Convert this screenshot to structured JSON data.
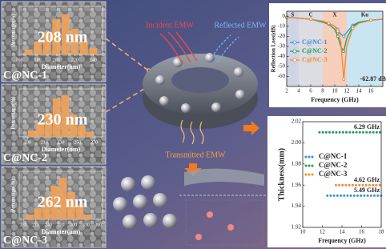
{
  "panels": [
    {
      "size_label": "208 nm",
      "name": "C@NC-1",
      "histogram": {
        "ylabel": "Percentage(%)",
        "xlabel": "Diameter(nm)",
        "color": "#f2a35a",
        "x": [
          170,
          180,
          190,
          200,
          210,
          220,
          230,
          240
        ],
        "values": [
          3,
          8,
          14,
          22,
          25,
          16,
          8,
          4
        ],
        "xlim": [
          160,
          250
        ],
        "ylim": [
          0,
          30
        ],
        "xticks": [
          160,
          180,
          200,
          220,
          240
        ]
      }
    },
    {
      "size_label": "230 nm",
      "name": "C@NC-2",
      "histogram": {
        "ylabel": "Percentage(%)",
        "xlabel": "Diameter(nm)",
        "color": "#f2a35a",
        "x": [
          195,
          205,
          215,
          225,
          235,
          245,
          255,
          265
        ],
        "values": [
          4,
          9,
          15,
          24,
          26,
          14,
          7,
          3
        ],
        "xlim": [
          180,
          280
        ],
        "ylim": [
          0,
          30
        ],
        "xticks": [
          190,
          210,
          230,
          250,
          270
        ]
      }
    },
    {
      "size_label": "262 nm",
      "name": "C@NC-3",
      "histogram": {
        "ylabel": "Percentage(%)",
        "xlabel": "Diameter(nm)",
        "color": "#f2a35a",
        "x": [
          195,
          215,
          235,
          255,
          275,
          295,
          315,
          335
        ],
        "values": [
          3,
          7,
          14,
          21,
          26,
          17,
          9,
          3
        ],
        "xlim": [
          170,
          370
        ],
        "ylim": [
          0,
          30
        ],
        "xticks": [
          180,
          210,
          240,
          270,
          300,
          330,
          360
        ]
      }
    }
  ],
  "diagram": {
    "incident": "Incident EMW",
    "reflected": "Reflected EMW",
    "transmitted": "Transmitted EMW"
  },
  "chart_data": [
    {
      "type": "line",
      "ylabel": "Reflection Loss(dB)",
      "xlabel": "Frequency (GHz)",
      "x": [
        2,
        4,
        6,
        8,
        9,
        10,
        10.5,
        11,
        11.5,
        12,
        13,
        14,
        16,
        18
      ],
      "series": [
        {
          "name": "C@NC-1",
          "color": "#3a8fd8",
          "values": [
            -1,
            -2,
            -3,
            -5,
            -7,
            -10,
            -13,
            -18,
            -20,
            -16,
            -9,
            -6,
            -4,
            -3
          ]
        },
        {
          "name": "C@NC-2",
          "color": "#1f9a5a",
          "values": [
            -1,
            -2,
            -3,
            -6,
            -8,
            -13,
            -20,
            -30,
            -35,
            -22,
            -10,
            -6,
            -4,
            -3
          ]
        },
        {
          "name": "C@NC-3",
          "color": "#f08a30",
          "values": [
            -1,
            -2,
            -3,
            -5,
            -7,
            -10,
            -15,
            -25,
            -62.87,
            -30,
            -12,
            -7,
            -4,
            -3
          ]
        }
      ],
      "bands": [
        {
          "label": "S",
          "from": 2,
          "to": 4,
          "color": "#c9cde0"
        },
        {
          "label": "C",
          "from": 4,
          "to": 8,
          "color": "#d6d6de"
        },
        {
          "label": "X",
          "from": 8,
          "to": 12,
          "color": "#f6c6b0"
        },
        {
          "label": "Ku",
          "from": 12,
          "to": 18,
          "color": "#bfe0ee"
        }
      ],
      "annotation": {
        "text": "-62.87 dB",
        "x": 11.5,
        "y": -62.87
      },
      "xlim": [
        2,
        18
      ],
      "ylim": [
        -70,
        5
      ],
      "xticks": [
        2,
        4,
        6,
        8,
        10,
        12,
        14,
        16
      ],
      "yticks": [
        0,
        -10,
        -20,
        -30,
        -40,
        -50,
        -60
      ],
      "legend": "center left"
    },
    {
      "type": "range",
      "ylabel": "Thickness(mm)",
      "xlabel": "Frequency (GHz)",
      "xlim": [
        10,
        18
      ],
      "xticks": [
        10,
        12,
        14,
        16,
        18
      ],
      "ylim": [
        1.92,
        2.02
      ],
      "yticks": [
        1.92,
        1.94,
        1.96,
        1.98,
        {
          "value": 2,
          "label": "2.00"
        },
        2.02
      ],
      "legend": "center left",
      "series": [
        {
          "name": "C@NC-1",
          "color": "#3a8fd8",
          "thickness": 1.95,
          "from": 12.51,
          "to": 18,
          "label": "5.49 GHz"
        },
        {
          "name": "C@NC-2",
          "color": "#1f9a5a",
          "thickness": 2.01,
          "from": 11.71,
          "to": 18,
          "label": "6.29 GHz"
        },
        {
          "name": "C@NC-3",
          "color": "#f08a30",
          "thickness": 1.96,
          "from": 13.38,
          "to": 18,
          "label": "4.62 GHz"
        }
      ]
    }
  ]
}
